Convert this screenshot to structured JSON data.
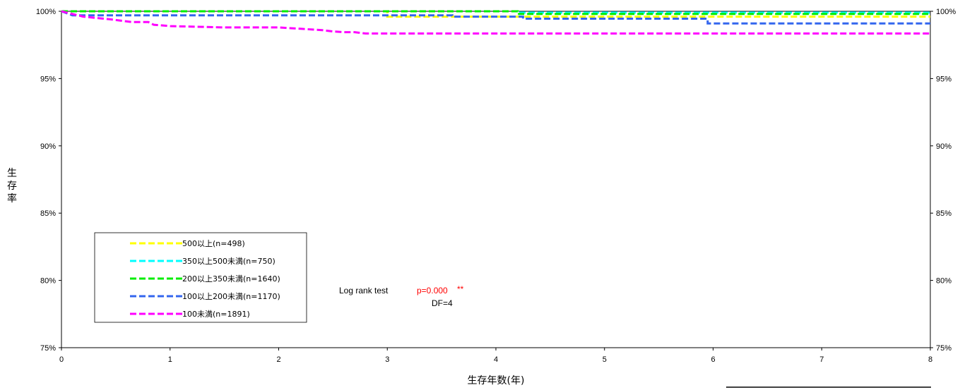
{
  "chart_data": {
    "type": "line",
    "xlabel": "生存年数(年)",
    "ylabel": "生存率",
    "xlim": [
      0,
      8
    ],
    "ylim": [
      75,
      100
    ],
    "x_ticks": [
      "0",
      "1",
      "2",
      "3",
      "4",
      "5",
      "6",
      "7",
      "8"
    ],
    "y_ticks_left": [
      "75%",
      "80%",
      "85%",
      "90%",
      "95%",
      "100%"
    ],
    "y_ticks_right": [
      "75%",
      "80%",
      "85%",
      "90%",
      "95%",
      "100%"
    ],
    "grid": false,
    "legend_position": "bottom-left",
    "series": [
      {
        "name": "500以上(n=498)",
        "color": "#ffff00",
        "points": [
          [
            0,
            100
          ],
          [
            3,
            100
          ],
          [
            3,
            99.6
          ],
          [
            8,
            99.6
          ]
        ]
      },
      {
        "name": "350以上500未満(n=750)",
        "color": "#00ffff",
        "points": [
          [
            0,
            100
          ],
          [
            4.2,
            100
          ],
          [
            4.2,
            99.9
          ],
          [
            8,
            99.9
          ]
        ]
      },
      {
        "name": "200以上350未満(n=1640)",
        "color": "#00ee00",
        "points": [
          [
            0,
            100
          ],
          [
            4.2,
            100
          ],
          [
            4.2,
            99.8
          ],
          [
            8,
            99.8
          ]
        ]
      },
      {
        "name": "100以上200未満(n=1170)",
        "color": "#3366ee",
        "points": [
          [
            0,
            100
          ],
          [
            0.1,
            99.7
          ],
          [
            3.6,
            99.7
          ],
          [
            3.6,
            99.6
          ],
          [
            4.25,
            99.6
          ],
          [
            4.25,
            99.45
          ],
          [
            5.95,
            99.45
          ],
          [
            5.95,
            99.1
          ],
          [
            8,
            99.1
          ]
        ]
      },
      {
        "name": "100未満(n=1891)",
        "color": "#ff00ff",
        "points": [
          [
            0,
            100
          ],
          [
            0.2,
            99.6
          ],
          [
            0.45,
            99.4
          ],
          [
            0.65,
            99.2
          ],
          [
            0.8,
            99.2
          ],
          [
            0.85,
            99.0
          ],
          [
            1.0,
            98.9
          ],
          [
            1.5,
            98.8
          ],
          [
            2.0,
            98.8
          ],
          [
            2.2,
            98.7
          ],
          [
            2.4,
            98.6
          ],
          [
            2.5,
            98.5
          ],
          [
            2.6,
            98.45
          ],
          [
            2.7,
            98.45
          ],
          [
            2.8,
            98.35
          ],
          [
            8,
            98.35
          ]
        ]
      }
    ],
    "annotations": {
      "test_label": "Log rank test",
      "p_value": "p=0.000",
      "stars": "**",
      "df": "DF=4",
      "p_color": "#ff0000"
    }
  }
}
